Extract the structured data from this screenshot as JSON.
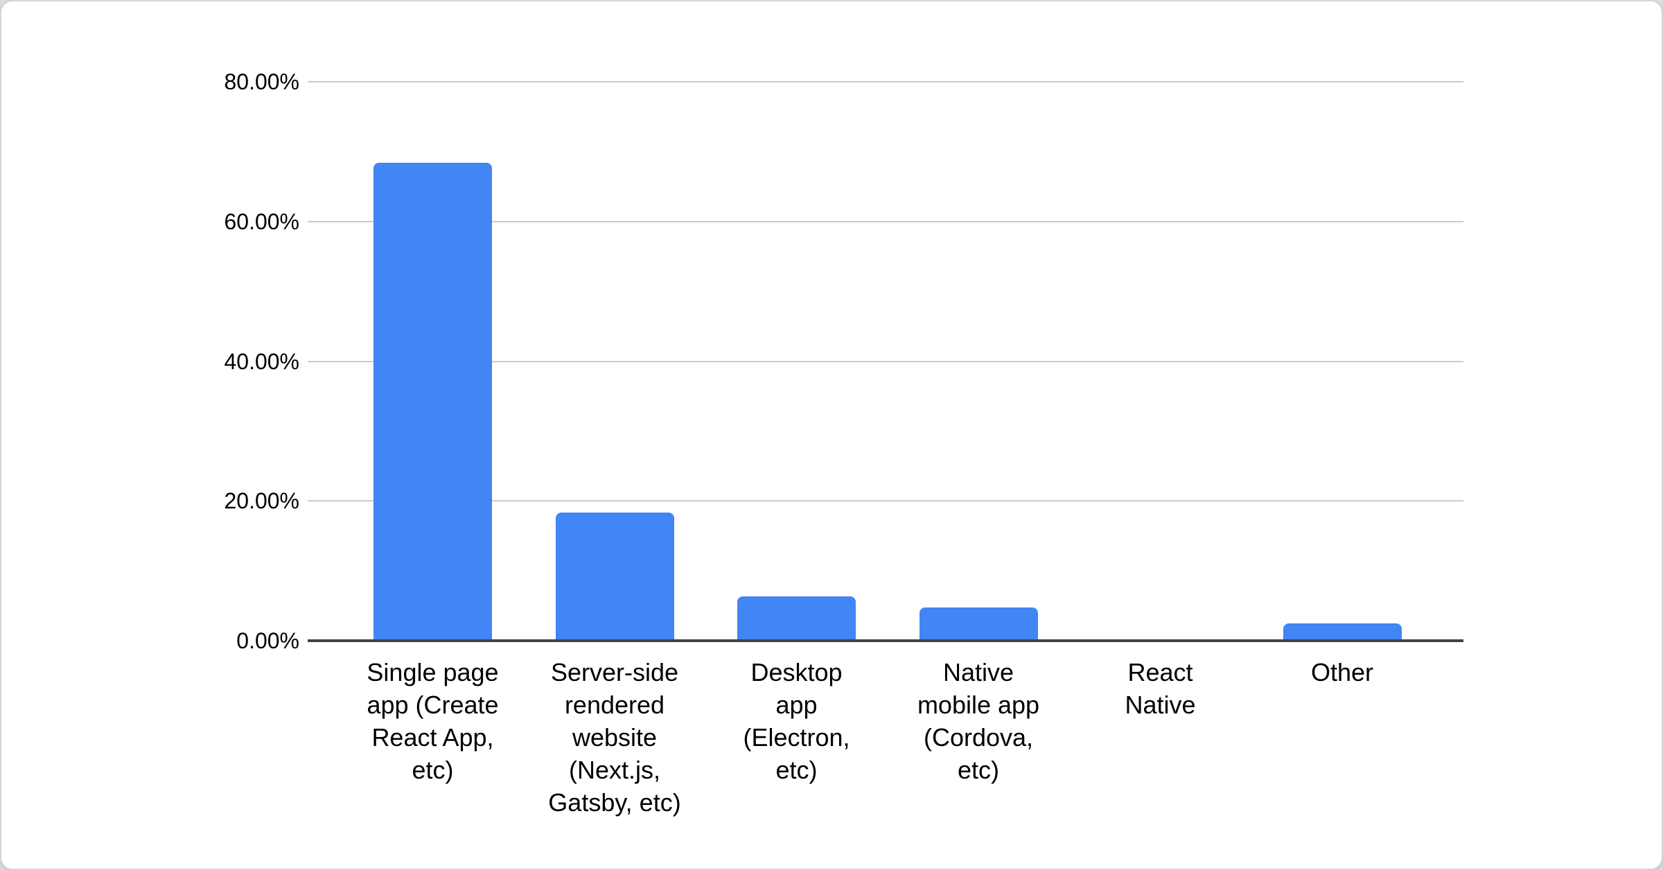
{
  "page": {
    "background_color": "#dadce0"
  },
  "card": {
    "background_color": "#ffffff",
    "border_color": "#d3d5d8"
  },
  "chart_data": {
    "type": "bar",
    "title": "",
    "xlabel": "",
    "ylabel": "",
    "categories": [
      "Single page app (Create React App, etc)",
      "Server-side rendered website (Next.js, Gatsby, etc)",
      "Desktop app (Electron, etc)",
      "Native mobile app (Cordova, etc)",
      "React Native",
      "Other"
    ],
    "categories_display": [
      "Single page\napp (Create\nReact App,\netc)",
      "Server-side\nrendered\nwebsite\n(Next.js,\nGatsby, etc)",
      "Desktop\napp\n(Electron,\netc)",
      "Native\nmobile app\n(Cordova,\netc)",
      "React\nNative",
      "Other"
    ],
    "values": [
      68.4,
      18.3,
      6.3,
      4.8,
      0.1,
      2.5
    ],
    "unit": "%",
    "series_color": "#4285f4",
    "ylim": [
      0,
      80
    ],
    "y_tick_step": 20,
    "y_tick_labels": [
      "80.00%",
      "60.00%",
      "40.00%",
      "20.00%",
      "0.00%"
    ],
    "grid": true,
    "gridline_color": "#cccccc",
    "axis_line_color": "#424242",
    "legend_position": "none"
  }
}
